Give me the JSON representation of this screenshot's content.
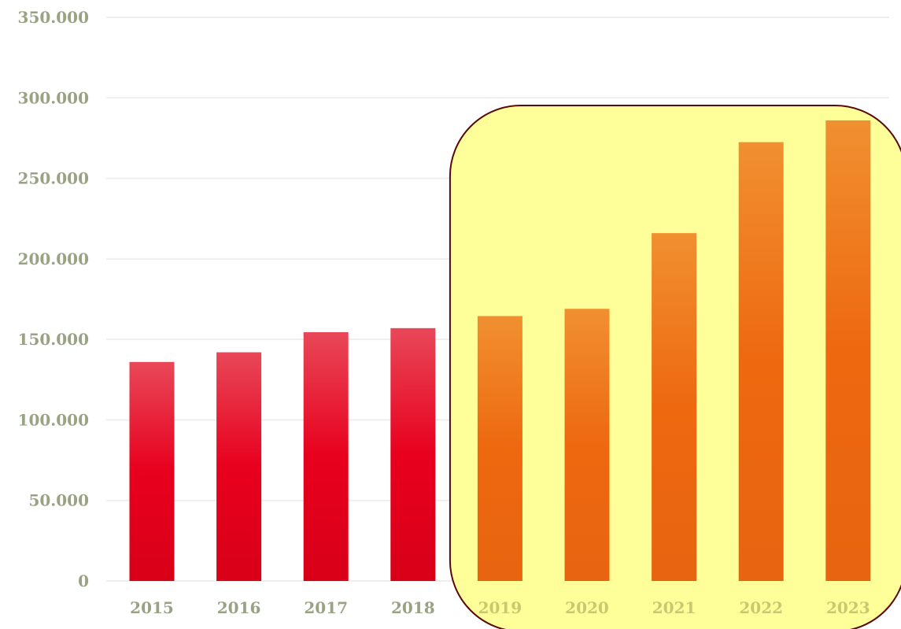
{
  "chart_data": {
    "type": "bar",
    "title": "",
    "xlabel": "",
    "ylabel": "",
    "categories": [
      "2015",
      "2016",
      "2017",
      "2018",
      "2019",
      "2020",
      "2021",
      "2022",
      "2023"
    ],
    "values": [
      136000,
      142000,
      154500,
      157000,
      164500,
      169000,
      216000,
      272500,
      286000
    ],
    "ylim": [
      0,
      350000
    ],
    "yticks": [
      0,
      50000,
      100000,
      150000,
      200000,
      250000,
      300000,
      350000
    ],
    "ytick_labels": [
      "0",
      "50.000",
      "100.000",
      "150.000",
      "200.000",
      "250.000",
      "300.000",
      "350.000"
    ],
    "grid": "horizontal",
    "legend": "none",
    "highlight": {
      "categories": [
        "2019",
        "2020",
        "2021",
        "2022",
        "2023"
      ],
      "fill": "#ffff99",
      "stroke": "#5a0a0a"
    },
    "colors": {
      "base_bar_top": "#e84858",
      "base_bar_mid": "#e8001e",
      "base_bar_bottom": "#d80018",
      "highlight_bar_top": "#f09030",
      "highlight_bar_mid": "#ee6810",
      "highlight_bar_bottom": "#e86410",
      "tick_label": "#9aa284",
      "highlight_tick_label": "#c8c870",
      "grid": "#eeeeee"
    }
  }
}
